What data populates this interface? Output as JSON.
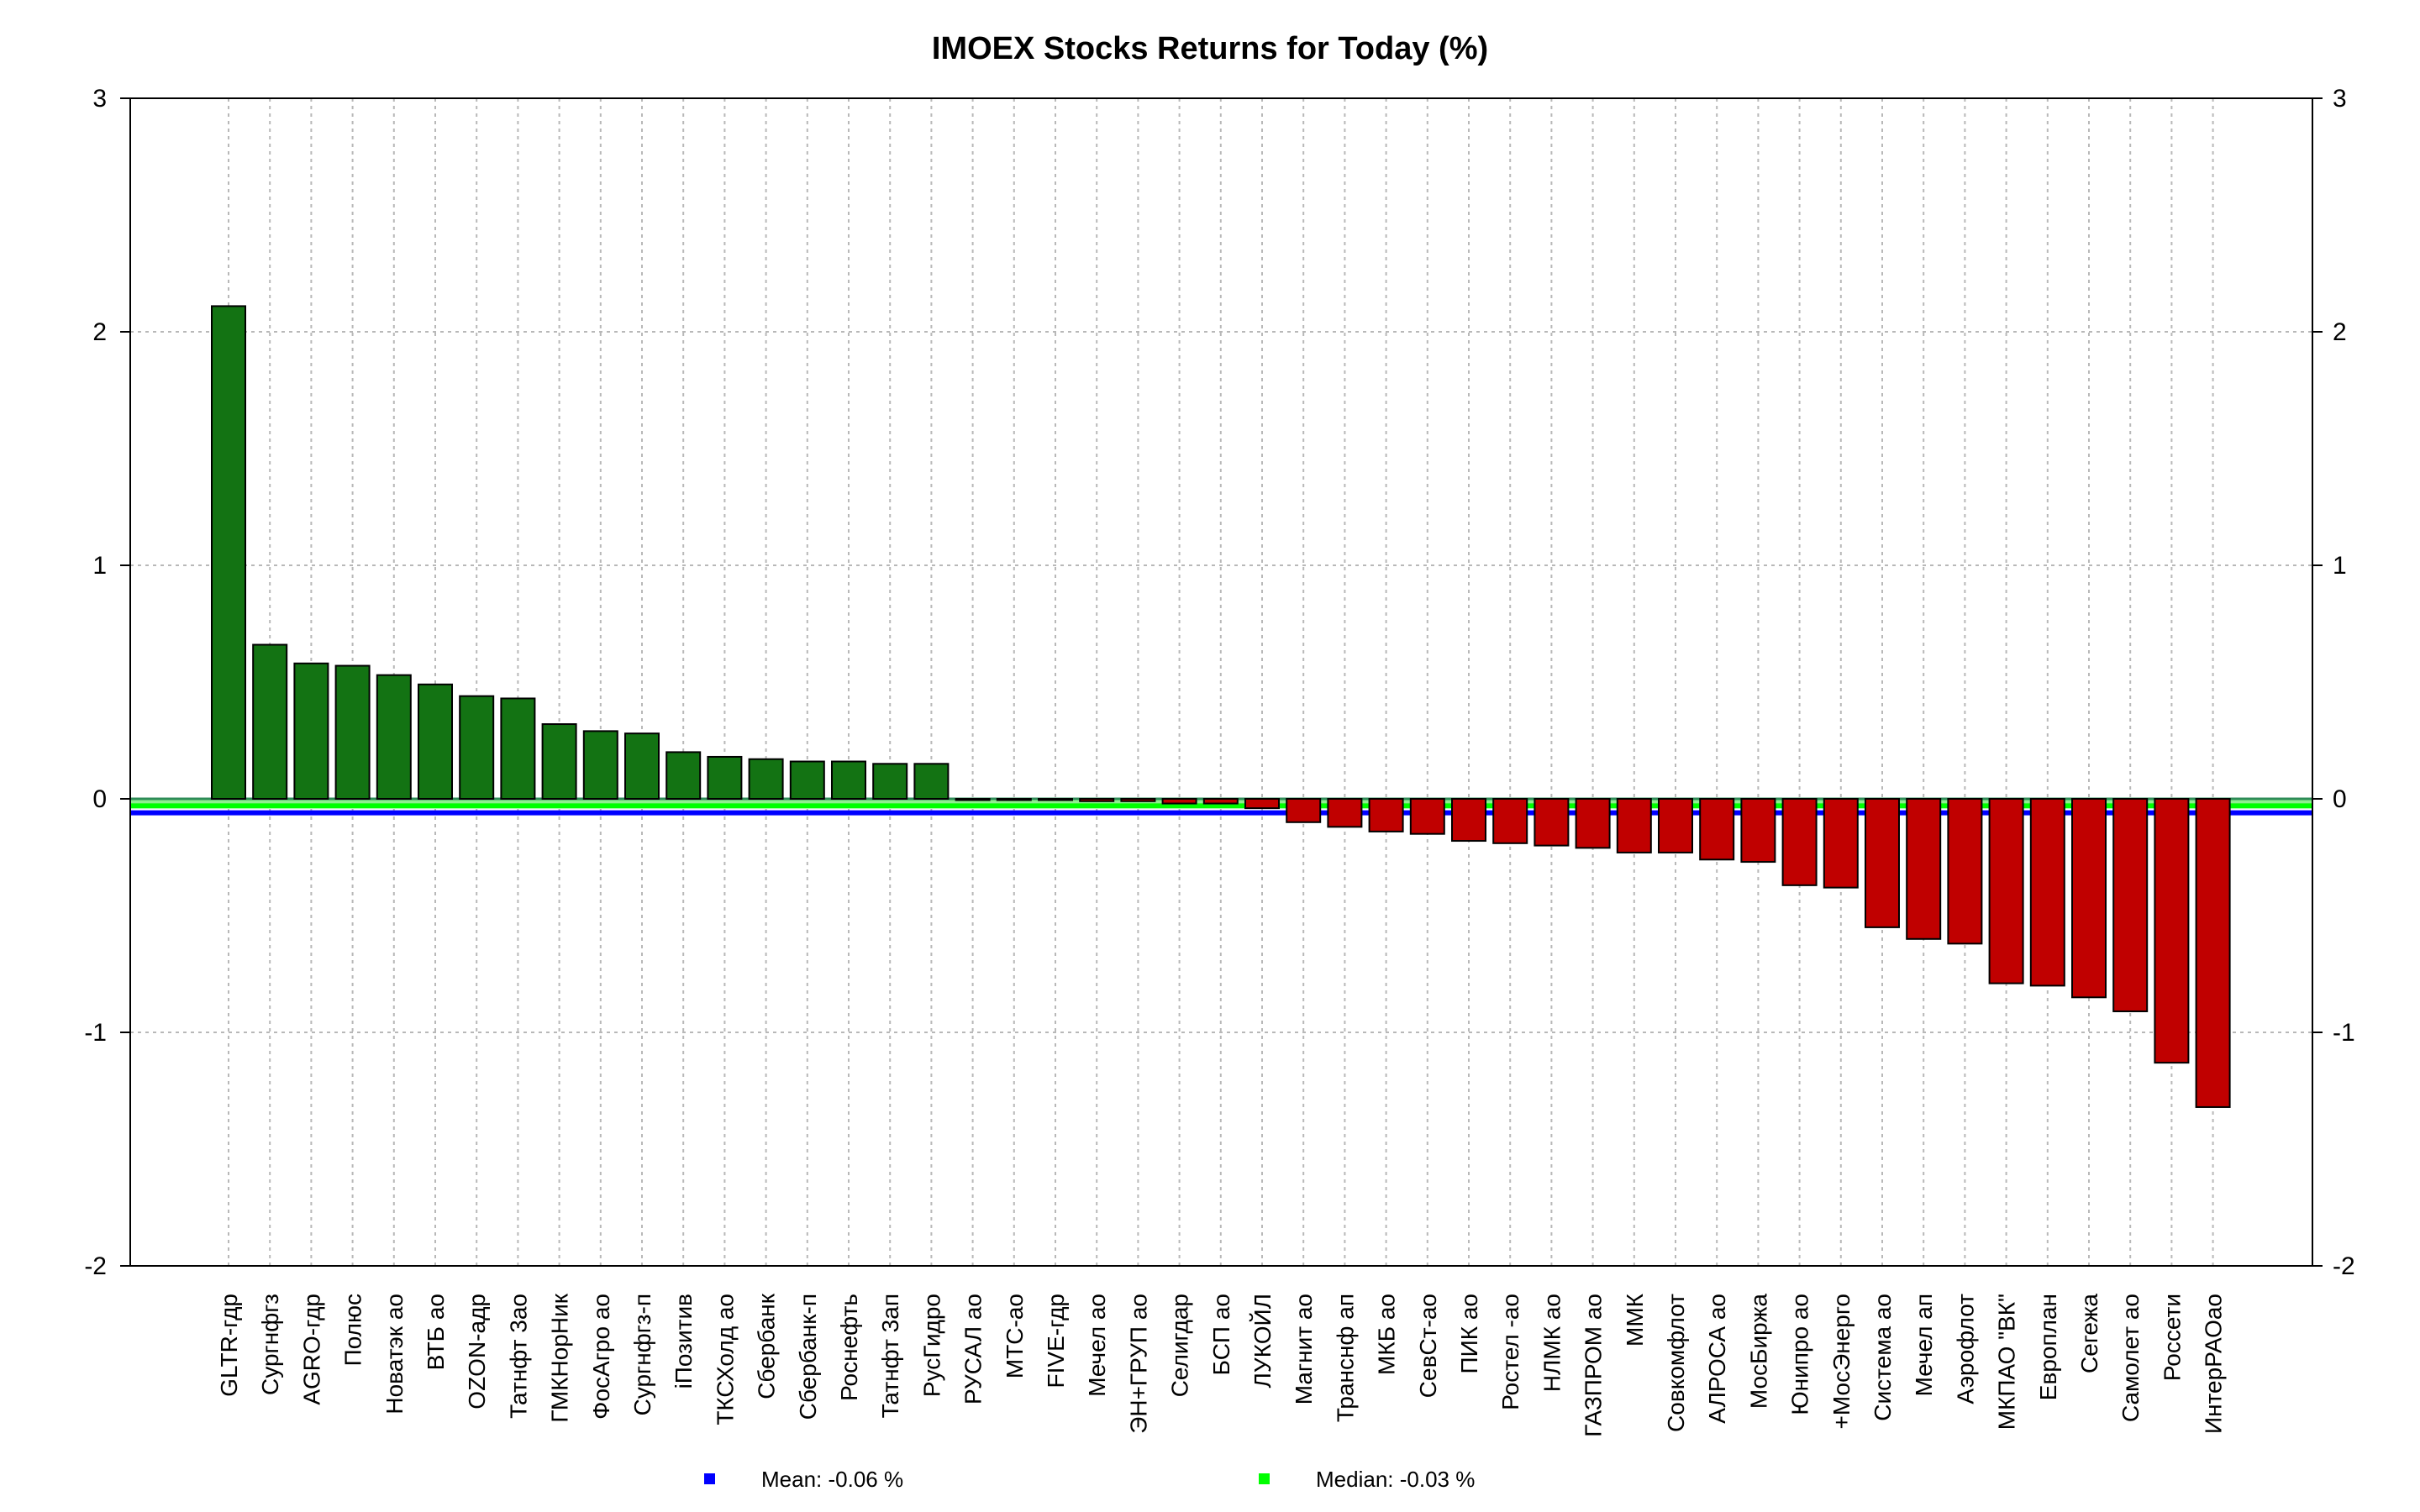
{
  "chart_data": {
    "type": "bar",
    "title": "IMOEX Stocks Returns for Today (%)",
    "xlabel": "",
    "ylabel": "",
    "ylim": [
      -2,
      3
    ],
    "yticks": [
      -2,
      -1,
      0,
      1,
      2,
      3
    ],
    "grid": true,
    "categories": [
      "GLTR-гдр",
      "Сургнфгз",
      "AGRO-гдр",
      "Полюс",
      "Новатэк ао",
      "ВТБ ао",
      "OZON-адр",
      "Татнфт 3ао",
      "ГМКНорНик",
      "ФосАгро ао",
      "Сургнфгз-п",
      "iПозитив",
      "ТКСХолд ао",
      "Сбербанк",
      "Сбербанк-п",
      "Роснефть",
      "Татнфт 3ап",
      "РусГидро",
      "РУСАЛ ао",
      "МТС-ао",
      "FIVE-гдр",
      "Мечел ао",
      "ЭН+ГРУП ао",
      "Селигдар",
      "БСП ао",
      "ЛУКОЙЛ",
      "Магнит ао",
      "Транснф ап",
      "МКБ ао",
      "СевСт-ао",
      "ПИК ао",
      "Ростел -ао",
      "НЛМК ао",
      "ГАЗПРОМ ао",
      "ММК",
      "Совкомфлот",
      "АЛРОСА ао",
      "МосБиржа",
      "Юнипро ао",
      "+МосЭнерго",
      "Система ао",
      "Мечел ап",
      "Аэрофлот",
      "МКПАО \"ВК\"",
      "Европлан",
      "Сегежа",
      "Самолет ао",
      "Россети",
      "ИнтерРАОао"
    ],
    "values": [
      2.11,
      0.66,
      0.58,
      0.57,
      0.53,
      0.49,
      0.44,
      0.43,
      0.32,
      0.29,
      0.28,
      0.2,
      0.18,
      0.17,
      0.16,
      0.16,
      0.15,
      0.15,
      0.0,
      0.0,
      0.0,
      -0.01,
      -0.01,
      -0.02,
      -0.02,
      -0.04,
      -0.1,
      -0.12,
      -0.14,
      -0.15,
      -0.18,
      -0.19,
      -0.2,
      -0.21,
      -0.23,
      -0.23,
      -0.26,
      -0.27,
      -0.37,
      -0.38,
      -0.55,
      -0.6,
      -0.62,
      -0.79,
      -0.8,
      -0.85,
      -0.91,
      -1.13,
      -1.32
    ],
    "mean": -0.06,
    "median": -0.03,
    "legend": [
      {
        "label": "Mean: -0.06 %",
        "color": "#0000ff"
      },
      {
        "label": "Median: -0.03 %",
        "color": "#00ff00"
      }
    ],
    "legend_position": "bottom",
    "colors": {
      "positive": "#137313",
      "negative": "#c00000",
      "mean_line": "#0000ff",
      "median_line": "#00ff00"
    }
  }
}
